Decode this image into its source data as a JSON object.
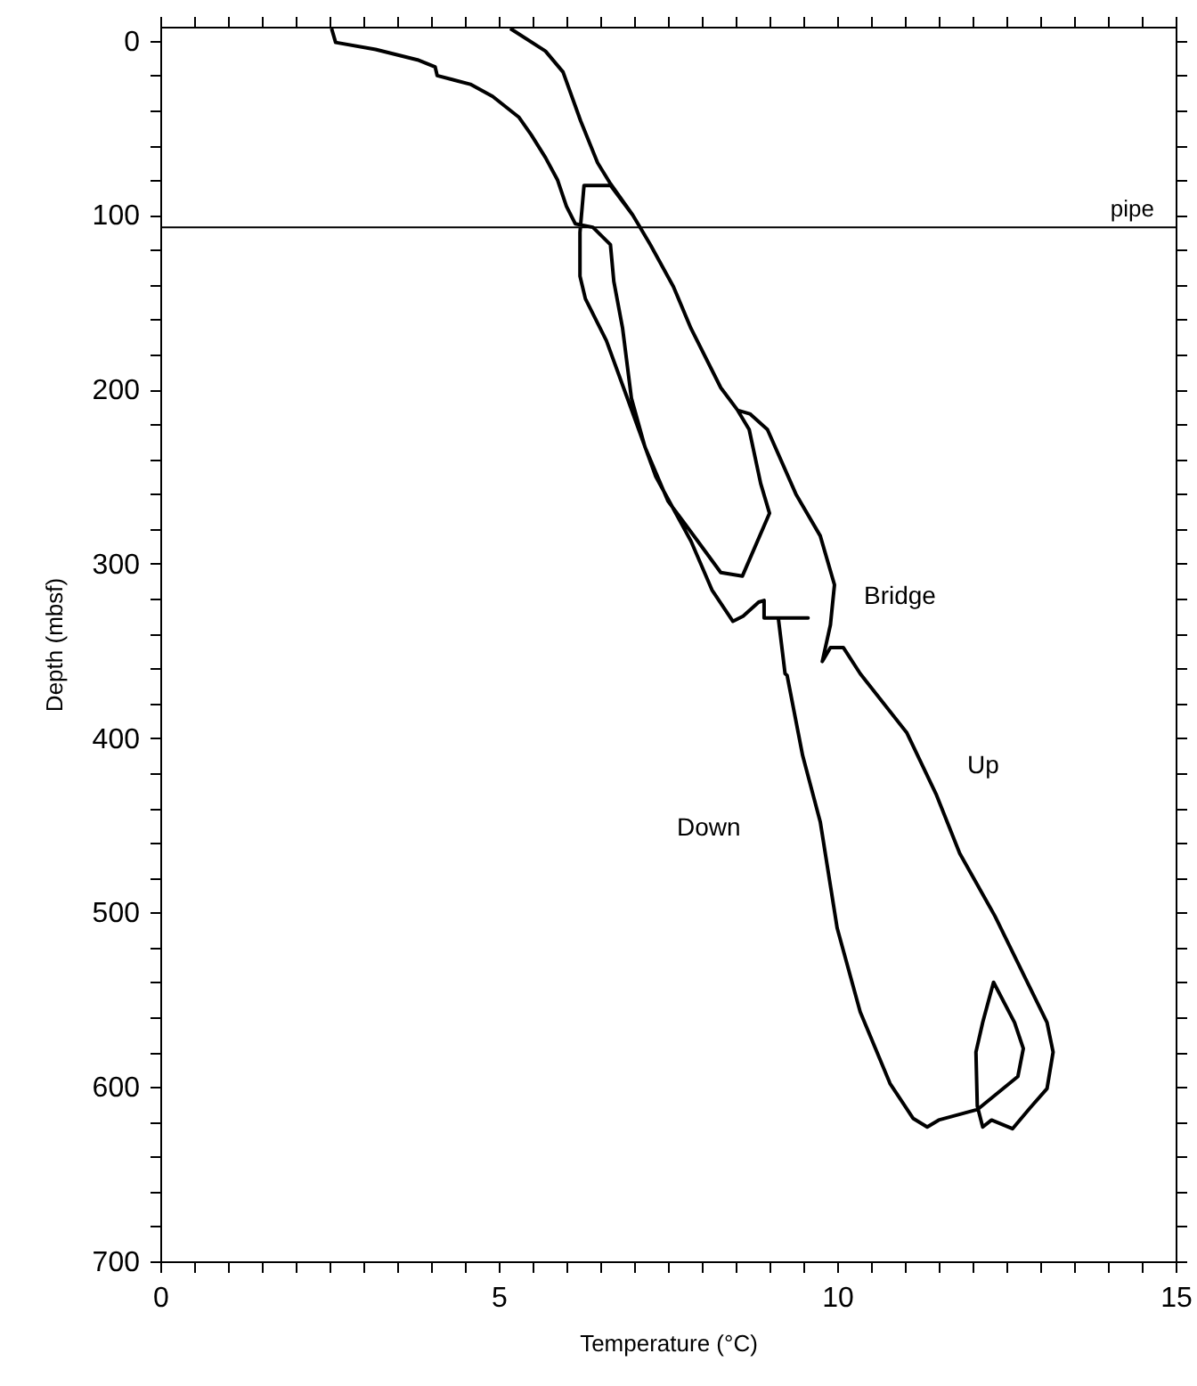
{
  "chart_data": {
    "type": "line",
    "xlabel": "Temperature (°C)",
    "ylabel": "Depth (mbsf)",
    "xlim": [
      0,
      15
    ],
    "ylim": [
      700,
      -8
    ],
    "xticks": [
      0,
      {
        "value": 0.5,
        "label": null
      },
      {
        "value": 1,
        "label": null
      },
      {
        "value": 1.5,
        "label": null
      },
      {
        "value": 2,
        "label": null
      },
      {
        "value": 2.5,
        "label": null
      },
      {
        "value": 3,
        "label": null
      },
      {
        "value": 3.5,
        "label": null
      },
      {
        "value": 4,
        "label": null
      },
      {
        "value": 4.5,
        "label": null
      },
      5,
      {
        "value": 5.5,
        "label": null
      },
      {
        "value": 6,
        "label": null
      },
      {
        "value": 6.5,
        "label": null
      },
      {
        "value": 7,
        "label": null
      },
      {
        "value": 7.5,
        "label": null
      },
      {
        "value": 8,
        "label": null
      },
      {
        "value": 8.5,
        "label": null
      },
      {
        "value": 9,
        "label": null
      },
      {
        "value": 9.5,
        "label": null
      },
      10,
      {
        "value": 10.5,
        "label": null
      },
      {
        "value": 11,
        "label": null
      },
      {
        "value": 11.5,
        "label": null
      },
      {
        "value": 12,
        "label": null
      },
      {
        "value": 12.5,
        "label": null
      },
      {
        "value": 13,
        "label": null
      },
      {
        "value": 13.5,
        "label": null
      },
      {
        "value": 14,
        "label": null
      },
      {
        "value": 14.5,
        "label": null
      },
      15
    ],
    "yticks": [
      0,
      {
        "value": 20,
        "label": null
      },
      {
        "value": 40,
        "label": null
      },
      {
        "value": 60,
        "label": null
      },
      {
        "value": 80,
        "label": null
      },
      100,
      {
        "value": 120,
        "label": null
      },
      {
        "value": 140,
        "label": null
      },
      {
        "value": 160,
        "label": null
      },
      {
        "value": 180,
        "label": null
      },
      200,
      {
        "value": 220,
        "label": null
      },
      {
        "value": 240,
        "label": null
      },
      {
        "value": 260,
        "label": null
      },
      {
        "value": 280,
        "label": null
      },
      300,
      {
        "value": 320,
        "label": null
      },
      {
        "value": 340,
        "label": null
      },
      {
        "value": 360,
        "label": null
      },
      {
        "value": 380,
        "label": null
      },
      400,
      {
        "value": 420,
        "label": null
      },
      {
        "value": 440,
        "label": null
      },
      {
        "value": 460,
        "label": null
      },
      {
        "value": 480,
        "label": null
      },
      500,
      {
        "value": 520,
        "label": null
      },
      {
        "value": 540,
        "label": null
      },
      {
        "value": 560,
        "label": null
      },
      {
        "value": 580,
        "label": null
      },
      600,
      {
        "value": 620,
        "label": null
      },
      {
        "value": 640,
        "label": null
      },
      {
        "value": 660,
        "label": null
      },
      {
        "value": 680,
        "label": null
      },
      700
    ],
    "grid": false,
    "marker": "none",
    "line_style": "solid",
    "series": [
      {
        "color": "#000000",
        "x": [
          2.53,
          2.59,
          3.18,
          3.8,
          4.06,
          4.09,
          4.58,
          4.91,
          5.3,
          5.48,
          5.69,
          5.87,
          6.0,
          6.13,
          6.39,
          6.65,
          6.7,
          6.83,
          6.96,
          7.16,
          7.5,
          7.94,
          8.28,
          8.6,
          9.0,
          8.87,
          8.7,
          8.53,
          8.28,
          7.84,
          7.58,
          7.24,
          6.98,
          6.65,
          6.26,
          6.2,
          6.2,
          6.28,
          6.59,
          6.9,
          7.32,
          7.84,
          8.15,
          8.46,
          8.61,
          8.84,
          8.92,
          8.92,
          9.57,
          9.13,
          9.23,
          9.26,
          9.49,
          9.75,
          10.0,
          10.34,
          10.78,
          11.12,
          11.33,
          11.5,
          12.07,
          12.67,
          12.75,
          12.62,
          12.31,
          12.15,
          12.05,
          12.07,
          12.15,
          12.28,
          12.59,
          12.85,
          13.1,
          13.19,
          13.1,
          12.33,
          11.81,
          11.46,
          11.03,
          10.34,
          10.09,
          9.9,
          9.78,
          9.9,
          9.96,
          9.75,
          9.39,
          8.97,
          8.71,
          8.53,
          8.28,
          7.84,
          7.58,
          7.24,
          6.98,
          6.65,
          6.46,
          6.21,
          5.95,
          5.69,
          5.17
        ],
        "values": [
          -7,
          1,
          5,
          11,
          15,
          20,
          25,
          32,
          44,
          54,
          67,
          80,
          95,
          105,
          107,
          117,
          138,
          165,
          205,
          233,
          264,
          287,
          305,
          307,
          271,
          254,
          223,
          212,
          199,
          165,
          141,
          117,
          100,
          83,
          83,
          110,
          135,
          148,
          172,
          205,
          250,
          287,
          315,
          333,
          330,
          322,
          321,
          331,
          331,
          331,
          363,
          364,
          410,
          448,
          509,
          557,
          598,
          618,
          623,
          619,
          613,
          594,
          578,
          563,
          540,
          563,
          580,
          611,
          623,
          619,
          624,
          612,
          601,
          580,
          563,
          502,
          466,
          432,
          397,
          363,
          348,
          348,
          356,
          335,
          312,
          284,
          260,
          223,
          214,
          212,
          199,
          165,
          141,
          117,
          100,
          82,
          70,
          46,
          18,
          6,
          -7
        ]
      }
    ],
    "ref_lines": [
      {
        "axis": "y",
        "value": 107,
        "label": "pipe",
        "color": "#000000",
        "line_style": "solid"
      }
    ],
    "annotations": [
      "Bridge",
      "Up",
      "Down"
    ]
  }
}
